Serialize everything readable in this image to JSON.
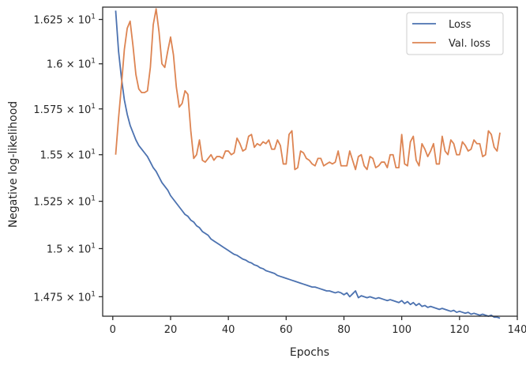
{
  "chart_data": {
    "type": "line",
    "xlabel": "Epochs",
    "ylabel": "Negative log-likelihood",
    "xlim": [
      -3.5,
      140
    ],
    "ylim": [
      14.65,
      16.32
    ],
    "y_scale": "log",
    "grid": false,
    "legend_position": "top-right",
    "x_ticks": [
      0,
      20,
      40,
      60,
      80,
      100,
      120,
      140
    ],
    "y_ticks": [
      {
        "value": 14.75,
        "mantissa": "1.475"
      },
      {
        "value": 15.0,
        "mantissa": "1.5"
      },
      {
        "value": 15.25,
        "mantissa": "1.525"
      },
      {
        "value": 15.5,
        "mantissa": "1.55"
      },
      {
        "value": 15.75,
        "mantissa": "1.575"
      },
      {
        "value": 16.0,
        "mantissa": "1.6"
      },
      {
        "value": 16.25,
        "mantissa": "1.625"
      }
    ],
    "y_tick_suffix": "× 10",
    "y_tick_exponent": "1",
    "series": [
      {
        "name": "Loss",
        "color": "#4c72b0",
        "x": [
          1,
          2,
          3,
          4,
          5,
          6,
          7,
          8,
          9,
          10,
          11,
          12,
          13,
          14,
          15,
          16,
          17,
          18,
          19,
          20,
          21,
          22,
          23,
          24,
          25,
          26,
          27,
          28,
          29,
          30,
          31,
          32,
          33,
          34,
          35,
          36,
          37,
          38,
          39,
          40,
          41,
          42,
          43,
          44,
          45,
          46,
          47,
          48,
          49,
          50,
          51,
          52,
          53,
          54,
          55,
          56,
          57,
          58,
          59,
          60,
          61,
          62,
          63,
          64,
          65,
          66,
          67,
          68,
          69,
          70,
          71,
          72,
          73,
          74,
          75,
          76,
          77,
          78,
          79,
          80,
          81,
          82,
          83,
          84,
          85,
          86,
          87,
          88,
          89,
          90,
          91,
          92,
          93,
          94,
          95,
          96,
          97,
          98,
          99,
          100,
          101,
          102,
          103,
          104,
          105,
          106,
          107,
          108,
          109,
          110,
          111,
          112,
          113,
          114,
          115,
          116,
          117,
          118,
          119,
          120,
          121,
          122,
          123,
          124,
          125,
          126,
          127,
          128,
          129,
          130,
          131,
          132,
          133,
          134
        ],
        "y": [
          16.3,
          16.07,
          15.92,
          15.8,
          15.72,
          15.66,
          15.62,
          15.58,
          15.55,
          15.53,
          15.51,
          15.49,
          15.46,
          15.43,
          15.41,
          15.38,
          15.35,
          15.33,
          15.31,
          15.28,
          15.26,
          15.24,
          15.22,
          15.2,
          15.18,
          15.17,
          15.15,
          15.14,
          15.12,
          15.11,
          15.09,
          15.08,
          15.07,
          15.05,
          15.04,
          15.03,
          15.02,
          15.01,
          15.0,
          14.99,
          14.98,
          14.97,
          14.965,
          14.955,
          14.945,
          14.94,
          14.93,
          14.925,
          14.915,
          14.91,
          14.9,
          14.895,
          14.885,
          14.88,
          14.875,
          14.87,
          14.86,
          14.855,
          14.85,
          14.845,
          14.84,
          14.835,
          14.83,
          14.825,
          14.82,
          14.815,
          14.81,
          14.805,
          14.8,
          14.8,
          14.795,
          14.79,
          14.785,
          14.78,
          14.78,
          14.775,
          14.77,
          14.775,
          14.77,
          14.76,
          14.77,
          14.75,
          14.765,
          14.78,
          14.745,
          14.755,
          14.75,
          14.745,
          14.75,
          14.745,
          14.74,
          14.745,
          14.74,
          14.735,
          14.73,
          14.735,
          14.73,
          14.725,
          14.72,
          14.73,
          14.715,
          14.725,
          14.71,
          14.72,
          14.705,
          14.715,
          14.7,
          14.705,
          14.695,
          14.7,
          14.695,
          14.69,
          14.685,
          14.69,
          14.685,
          14.68,
          14.675,
          14.68,
          14.67,
          14.675,
          14.67,
          14.665,
          14.67,
          14.66,
          14.665,
          14.66,
          14.655,
          14.66,
          14.655,
          14.65,
          14.655,
          14.645,
          14.645,
          14.64
        ]
      },
      {
        "name": "Val. loss",
        "color": "#dd8452",
        "x": [
          1,
          2,
          3,
          4,
          5,
          6,
          7,
          8,
          9,
          10,
          11,
          12,
          13,
          14,
          15,
          16,
          17,
          18,
          19,
          20,
          21,
          22,
          23,
          24,
          25,
          26,
          27,
          28,
          29,
          30,
          31,
          32,
          33,
          34,
          35,
          36,
          37,
          38,
          39,
          40,
          41,
          42,
          43,
          44,
          45,
          46,
          47,
          48,
          49,
          50,
          51,
          52,
          53,
          54,
          55,
          56,
          57,
          58,
          59,
          60,
          61,
          62,
          63,
          64,
          65,
          66,
          67,
          68,
          69,
          70,
          71,
          72,
          73,
          74,
          75,
          76,
          77,
          78,
          79,
          80,
          81,
          82,
          83,
          84,
          85,
          86,
          87,
          88,
          89,
          90,
          91,
          92,
          93,
          94,
          95,
          96,
          97,
          98,
          99,
          100,
          101,
          102,
          103,
          104,
          105,
          106,
          107,
          108,
          109,
          110,
          111,
          112,
          113,
          114,
          115,
          116,
          117,
          118,
          119,
          120,
          121,
          122,
          123,
          124,
          125,
          126,
          127,
          128,
          129,
          130,
          131,
          132,
          133,
          134
        ],
        "y": [
          15.5,
          15.7,
          15.88,
          16.08,
          16.2,
          16.24,
          16.1,
          15.94,
          15.86,
          15.84,
          15.84,
          15.85,
          15.98,
          16.22,
          16.31,
          16.18,
          16.0,
          15.98,
          16.07,
          16.15,
          16.05,
          15.87,
          15.76,
          15.78,
          15.85,
          15.83,
          15.63,
          15.48,
          15.5,
          15.58,
          15.47,
          15.46,
          15.48,
          15.5,
          15.47,
          15.49,
          15.49,
          15.48,
          15.52,
          15.52,
          15.5,
          15.51,
          15.59,
          15.56,
          15.52,
          15.53,
          15.6,
          15.61,
          15.54,
          15.56,
          15.55,
          15.57,
          15.56,
          15.58,
          15.53,
          15.53,
          15.58,
          15.55,
          15.45,
          15.45,
          15.61,
          15.63,
          15.42,
          15.43,
          15.52,
          15.51,
          15.48,
          15.47,
          15.45,
          15.44,
          15.48,
          15.48,
          15.44,
          15.45,
          15.46,
          15.45,
          15.46,
          15.52,
          15.44,
          15.44,
          15.44,
          15.52,
          15.47,
          15.42,
          15.49,
          15.5,
          15.44,
          15.42,
          15.49,
          15.48,
          15.43,
          15.44,
          15.46,
          15.46,
          15.43,
          15.5,
          15.5,
          15.43,
          15.43,
          15.61,
          15.45,
          15.44,
          15.57,
          15.6,
          15.47,
          15.44,
          15.56,
          15.53,
          15.49,
          15.52,
          15.56,
          15.45,
          15.45,
          15.6,
          15.52,
          15.5,
          15.58,
          15.56,
          15.5,
          15.5,
          15.57,
          15.55,
          15.52,
          15.53,
          15.58,
          15.56,
          15.56,
          15.49,
          15.5,
          15.63,
          15.61,
          15.54,
          15.52,
          15.62
        ]
      }
    ]
  }
}
